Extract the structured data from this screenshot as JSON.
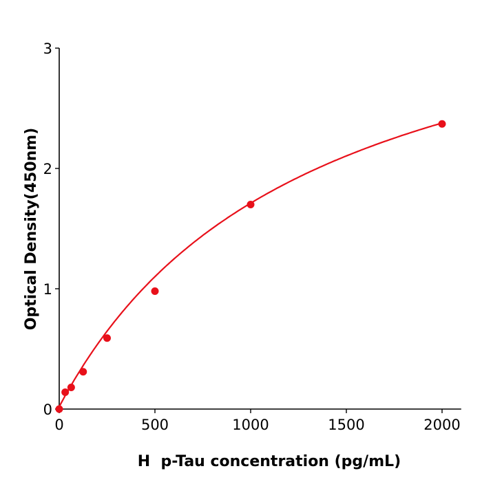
{
  "chart_data": {
    "type": "scatter",
    "title": "",
    "xlabel": "H  p-Tau concentration (pg/mL)",
    "ylabel": "Optical Density(450nm)",
    "xlim": [
      0,
      2100
    ],
    "ylim": [
      0,
      3
    ],
    "xticks": [
      0,
      500,
      1000,
      1500,
      2000
    ],
    "yticks": [
      0,
      1,
      2,
      3
    ],
    "grid": false,
    "color": "#e8101a",
    "series": [
      {
        "x": [
          0,
          31.25,
          62.5,
          125,
          250,
          500,
          1000,
          2000
        ],
        "y": [
          0.0,
          0.14,
          0.18,
          0.31,
          0.59,
          0.98,
          1.7,
          2.37
        ],
        "fit_curve": true
      }
    ]
  }
}
